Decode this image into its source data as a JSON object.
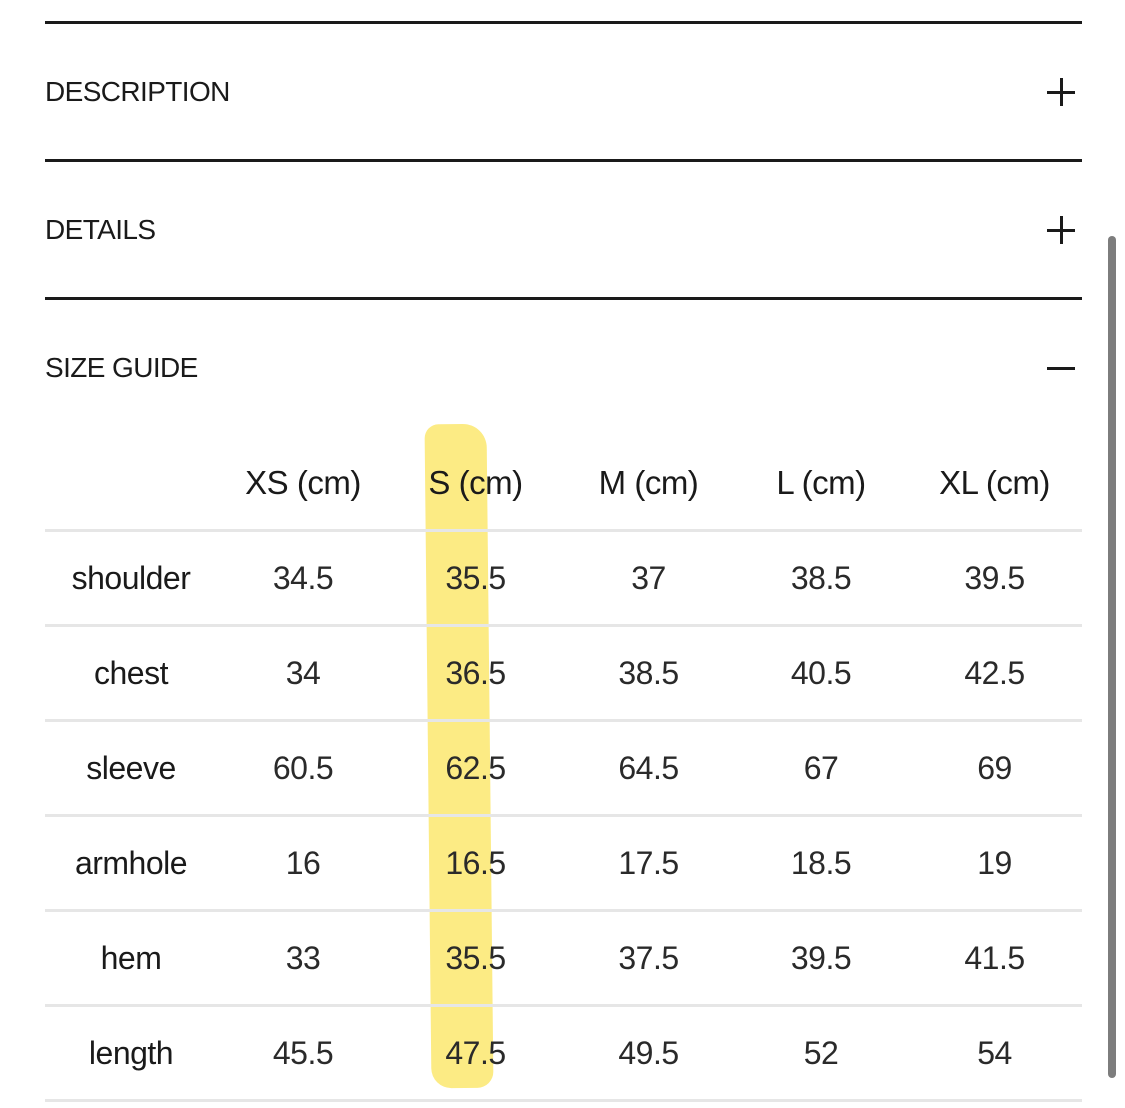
{
  "accordion": {
    "description": {
      "title": "DESCRIPTION",
      "state": "collapsed",
      "icon": "plus-icon"
    },
    "details": {
      "title": "DETAILS",
      "state": "collapsed",
      "icon": "plus-icon"
    },
    "size_guide": {
      "title": "SIZE GUIDE",
      "state": "expanded",
      "icon": "minus-icon"
    }
  },
  "size_table": {
    "columns": [
      "",
      "XS (cm)",
      "S (cm)",
      "M (cm)",
      "L (cm)",
      "XL (cm)"
    ],
    "highlighted_column": "S (cm)",
    "highlight_color": "#fbe86f",
    "rows": [
      {
        "label": "shoulder",
        "values": [
          "34.5",
          "35.5",
          "37",
          "38.5",
          "39.5"
        ]
      },
      {
        "label": "chest",
        "values": [
          "34",
          "36.5",
          "38.5",
          "40.5",
          "42.5"
        ]
      },
      {
        "label": "sleeve",
        "values": [
          "60.5",
          "62.5",
          "64.5",
          "67",
          "69"
        ]
      },
      {
        "label": "armhole",
        "values": [
          "16",
          "16.5",
          "17.5",
          "18.5",
          "19"
        ]
      },
      {
        "label": "hem",
        "values": [
          "33",
          "35.5",
          "37.5",
          "39.5",
          "41.5"
        ]
      },
      {
        "label": "length",
        "values": [
          "45.5",
          "47.5",
          "49.5",
          "52",
          "54"
        ]
      }
    ]
  }
}
